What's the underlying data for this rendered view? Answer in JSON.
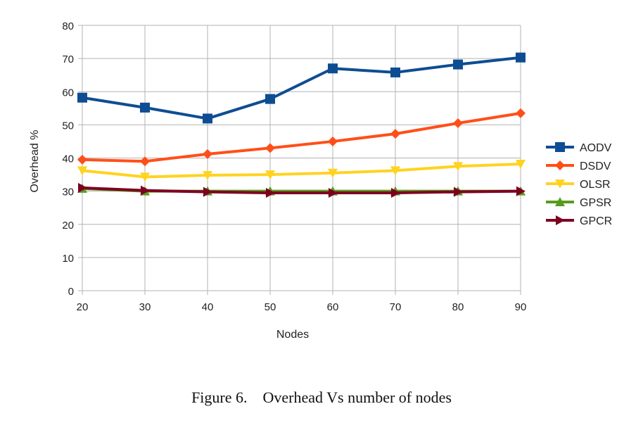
{
  "caption": {
    "label": "Figure 6.",
    "text": "Overhead Vs number of nodes"
  },
  "chart_data": {
    "type": "line",
    "xlabel": "Nodes",
    "ylabel": "Overhead %",
    "x": [
      20,
      30,
      40,
      50,
      60,
      70,
      80,
      90
    ],
    "xlim": [
      20,
      90
    ],
    "ylim": [
      0,
      80
    ],
    "yticks": [
      0,
      10,
      20,
      30,
      40,
      50,
      60,
      70,
      80
    ],
    "grid": true,
    "legend_position": "right",
    "series": [
      {
        "name": "AODV",
        "color": "#0e4d92",
        "marker": "square",
        "values": [
          58.2,
          55.2,
          51.9,
          57.8,
          67.0,
          65.8,
          68.2,
          70.3
        ]
      },
      {
        "name": "DSDV",
        "color": "#ff4f19",
        "marker": "diamond",
        "values": [
          39.5,
          39.0,
          41.2,
          43.0,
          45.0,
          47.3,
          50.5,
          53.5
        ]
      },
      {
        "name": "OLSR",
        "color": "#ffd320",
        "marker": "triangle-down",
        "values": [
          36.2,
          34.3,
          34.8,
          35.0,
          35.5,
          36.2,
          37.5,
          38.2
        ]
      },
      {
        "name": "GPSR",
        "color": "#579d1c",
        "marker": "triangle-up",
        "values": [
          30.8,
          30.0,
          30.0,
          30.0,
          30.0,
          30.0,
          30.0,
          30.0
        ]
      },
      {
        "name": "GPCR",
        "color": "#7e0021",
        "marker": "triangle-right",
        "values": [
          31.0,
          30.2,
          29.8,
          29.5,
          29.5,
          29.5,
          29.8,
          30.0
        ]
      }
    ]
  }
}
